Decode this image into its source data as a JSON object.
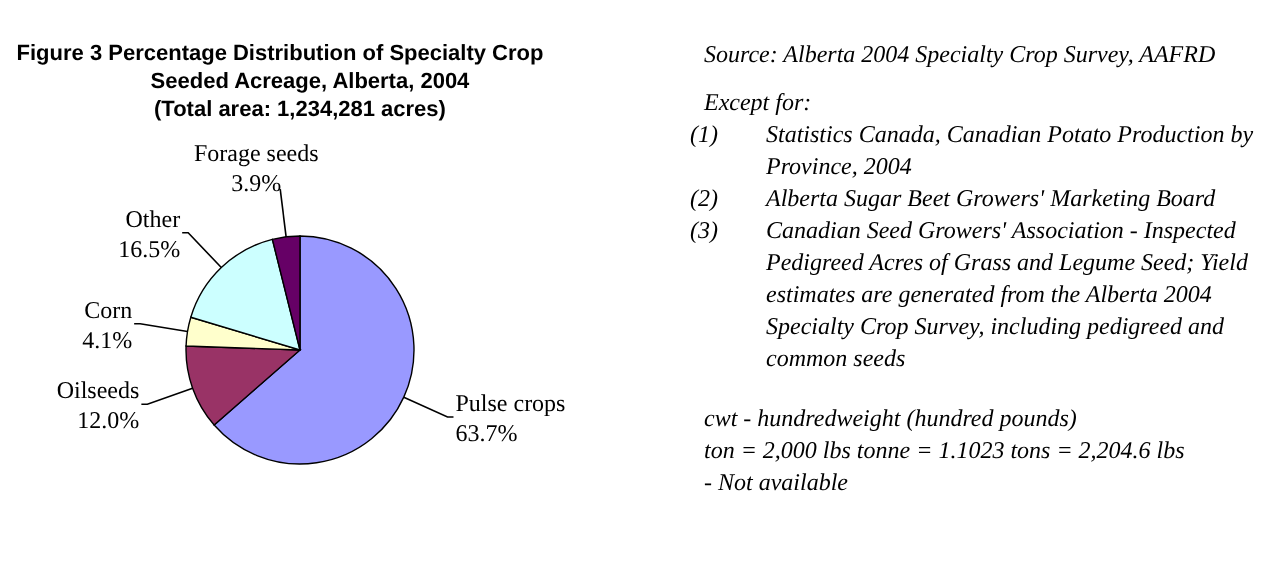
{
  "chart_data": {
    "type": "pie",
    "title": "Figure 3  Percentage Distribution of Specialty Crop Seeded Acreage, Alberta, 2004",
    "subtitle": "(Total area:  1,234,281 acres)",
    "categories": [
      "Pulse crops",
      "Oilseeds",
      "Corn",
      "Other",
      "Forage seeds"
    ],
    "values": [
      63.7,
      12.0,
      4.1,
      16.5,
      3.9
    ],
    "value_labels": [
      "63.7%",
      "12.0%",
      "4.1%",
      "16.5%",
      "3.9%"
    ],
    "colors": [
      "#9999ff",
      "#993366",
      "#ffffcc",
      "#ccffff",
      "#660066"
    ],
    "annotations": [
      "Source: Alberta 2004 Specialty Crop Survey, AAFRD",
      "Except for:",
      "(1) Statistics Canada, Canadian Potato Production by Province, 2004",
      "(2) Alberta Sugar Beet Growers' Marketing Board",
      "(3) Canadian Seed Growers' Association - Inspected Pedigreed Acres of Grass and Legume Seed;  Yield estimates are generated from the Alberta 2004 Specialty Crop Survey, including pedigreed and common seeds",
      "cwt - hundredweight (hundred pounds)",
      "ton = 2,000 lbs        tonne = 1.1023 tons = 2,204.6 lbs",
      "- Not available"
    ]
  }
}
